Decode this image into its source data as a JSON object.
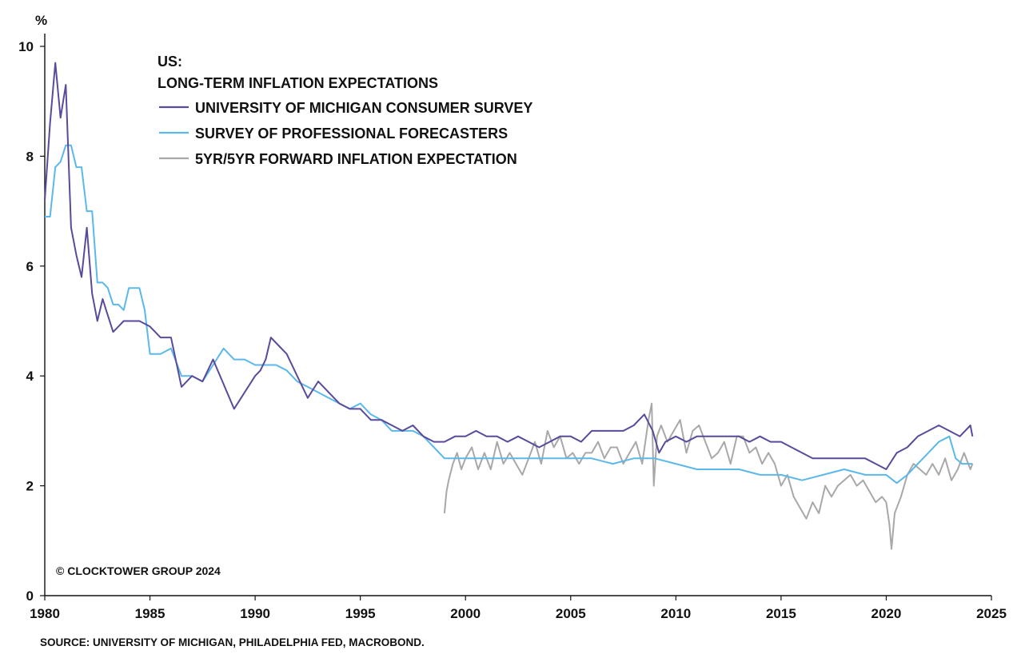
{
  "chart_data": {
    "type": "line",
    "title_line1": "US:",
    "title_line2": "LONG-TERM INFLATION EXPECTATIONS",
    "ylabel": "%",
    "xlim": [
      1980,
      2025
    ],
    "ylim": [
      0,
      10
    ],
    "x_ticks": [
      "1980",
      "1985",
      "1990",
      "1995",
      "2000",
      "2005",
      "2010",
      "2015",
      "2020",
      "2025"
    ],
    "y_ticks": [
      "0",
      "2",
      "4",
      "6",
      "8",
      "10"
    ],
    "grid": false,
    "legend_position": "top-left",
    "copyright": "© CLOCKTOWER GROUP 2024",
    "source": "SOURCE: UNIVERSITY OF MICHIGAN, PHILADELPHIA FED, MACROBOND.",
    "series": [
      {
        "name": "UNIVERSITY OF MICHIGAN CONSUMER SURVEY",
        "color": "#5b4a9c",
        "x": [
          1980.0,
          1980.25,
          1980.5,
          1980.75,
          1981.0,
          1981.25,
          1981.5,
          1981.75,
          1982.0,
          1982.25,
          1982.5,
          1982.75,
          1983.0,
          1983.25,
          1983.5,
          1983.75,
          1984.0,
          1984.5,
          1985.0,
          1985.5,
          1986.0,
          1986.5,
          1987.0,
          1987.5,
          1988.0,
          1989.0,
          1990.0,
          1990.25,
          1990.5,
          1990.75,
          1991.0,
          1991.5,
          1992.0,
          1992.5,
          1993.0,
          1993.5,
          1994.0,
          1994.5,
          1995.0,
          1995.5,
          1996.0,
          1996.5,
          1997.0,
          1997.5,
          1998.0,
          1998.5,
          1999.0,
          1999.5,
          2000.0,
          2000.5,
          2001.0,
          2001.5,
          2002.0,
          2002.5,
          2003.0,
          2003.5,
          2004.0,
          2004.5,
          2005.0,
          2005.5,
          2006.0,
          2006.5,
          2007.0,
          2007.5,
          2008.0,
          2008.5,
          2008.9,
          2009.2,
          2009.5,
          2010.0,
          2010.5,
          2011.0,
          2011.5,
          2012.0,
          2012.5,
          2013.0,
          2013.5,
          2014.0,
          2014.5,
          2015.0,
          2015.5,
          2016.0,
          2016.5,
          2017.0,
          2017.5,
          2018.0,
          2018.5,
          2019.0,
          2019.5,
          2020.0,
          2020.5,
          2021.0,
          2021.5,
          2022.0,
          2022.5,
          2023.0,
          2023.5,
          2024.0,
          2024.1
        ],
        "values": [
          7.2,
          8.6,
          9.7,
          8.7,
          9.3,
          6.7,
          6.2,
          5.8,
          6.7,
          5.5,
          5.0,
          5.4,
          5.1,
          4.8,
          4.9,
          5.0,
          5.0,
          5.0,
          4.9,
          4.7,
          4.7,
          3.8,
          4.0,
          3.9,
          4.3,
          3.4,
          4.0,
          4.1,
          4.3,
          4.7,
          4.6,
          4.4,
          4.0,
          3.6,
          3.9,
          3.7,
          3.5,
          3.4,
          3.4,
          3.2,
          3.2,
          3.1,
          3.0,
          3.1,
          2.9,
          2.8,
          2.8,
          2.9,
          2.9,
          3.0,
          2.9,
          2.9,
          2.8,
          2.9,
          2.8,
          2.7,
          2.8,
          2.9,
          2.9,
          2.8,
          3.0,
          3.0,
          3.0,
          3.0,
          3.1,
          3.3,
          3.0,
          2.6,
          2.8,
          2.9,
          2.8,
          2.9,
          2.9,
          2.9,
          2.9,
          2.9,
          2.8,
          2.9,
          2.8,
          2.8,
          2.7,
          2.6,
          2.5,
          2.5,
          2.5,
          2.5,
          2.5,
          2.5,
          2.4,
          2.3,
          2.6,
          2.7,
          2.9,
          3.0,
          3.1,
          3.0,
          2.9,
          3.1,
          2.9
        ]
      },
      {
        "name": "SURVEY OF PROFESSIONAL FORECASTERS",
        "color": "#5bb8ea",
        "x": [
          1980.0,
          1980.25,
          1980.5,
          1980.75,
          1981.0,
          1981.25,
          1981.5,
          1981.75,
          1982.0,
          1982.25,
          1982.5,
          1982.75,
          1983.0,
          1983.25,
          1983.5,
          1983.75,
          1984.0,
          1984.5,
          1984.75,
          1985.0,
          1985.5,
          1986.0,
          1986.5,
          1987.0,
          1987.5,
          1988.0,
          1988.5,
          1989.0,
          1989.5,
          1990.0,
          1990.5,
          1991.0,
          1991.5,
          1992.0,
          1992.5,
          1993.0,
          1993.5,
          1994.0,
          1994.5,
          1995.0,
          1995.5,
          1996.0,
          1996.5,
          1997.0,
          1997.5,
          1998.0,
          1998.5,
          1999.0,
          2000.0,
          2001.0,
          2002.0,
          2003.0,
          2004.0,
          2005.0,
          2006.0,
          2007.0,
          2008.0,
          2009.0,
          2010.0,
          2011.0,
          2012.0,
          2013.0,
          2014.0,
          2015.0,
          2016.0,
          2017.0,
          2018.0,
          2019.0,
          2020.0,
          2020.5,
          2021.0,
          2021.5,
          2022.0,
          2022.5,
          2023.0,
          2023.3,
          2023.6,
          2024.0,
          2024.1
        ],
        "values": [
          6.9,
          6.9,
          7.8,
          7.9,
          8.2,
          8.2,
          7.8,
          7.8,
          7.0,
          7.0,
          5.7,
          5.7,
          5.6,
          5.3,
          5.3,
          5.2,
          5.6,
          5.6,
          5.2,
          4.4,
          4.4,
          4.5,
          4.0,
          4.0,
          3.9,
          4.2,
          4.5,
          4.3,
          4.3,
          4.2,
          4.2,
          4.2,
          4.1,
          3.9,
          3.8,
          3.7,
          3.6,
          3.5,
          3.4,
          3.5,
          3.3,
          3.2,
          3.0,
          3.0,
          3.0,
          2.9,
          2.7,
          2.5,
          2.5,
          2.5,
          2.5,
          2.5,
          2.5,
          2.5,
          2.5,
          2.4,
          2.5,
          2.5,
          2.4,
          2.3,
          2.3,
          2.3,
          2.2,
          2.2,
          2.1,
          2.2,
          2.3,
          2.2,
          2.2,
          2.05,
          2.2,
          2.4,
          2.6,
          2.8,
          2.9,
          2.5,
          2.4,
          2.4,
          2.4
        ]
      },
      {
        "name": "5YR/5YR FORWARD INFLATION EXPECTATION",
        "color": "#a8a8a8",
        "x": [
          1999.0,
          1999.1,
          1999.2,
          1999.4,
          1999.6,
          1999.8,
          2000.0,
          2000.3,
          2000.6,
          2000.9,
          2001.2,
          2001.5,
          2001.8,
          2002.1,
          2002.4,
          2002.7,
          2003.0,
          2003.3,
          2003.6,
          2003.9,
          2004.2,
          2004.5,
          2004.8,
          2005.1,
          2005.4,
          2005.7,
          2006.0,
          2006.3,
          2006.6,
          2006.9,
          2007.2,
          2007.5,
          2007.8,
          2008.1,
          2008.4,
          2008.7,
          2008.85,
          2008.95,
          2009.1,
          2009.3,
          2009.6,
          2009.9,
          2010.2,
          2010.5,
          2010.8,
          2011.1,
          2011.4,
          2011.7,
          2012.0,
          2012.3,
          2012.6,
          2012.9,
          2013.2,
          2013.5,
          2013.8,
          2014.1,
          2014.4,
          2014.7,
          2015.0,
          2015.3,
          2015.6,
          2015.9,
          2016.2,
          2016.5,
          2016.8,
          2017.1,
          2017.4,
          2017.7,
          2018.0,
          2018.3,
          2018.6,
          2018.9,
          2019.2,
          2019.5,
          2019.8,
          2020.0,
          2020.15,
          2020.25,
          2020.4,
          2020.7,
          2021.0,
          2021.3,
          2021.6,
          2021.9,
          2022.2,
          2022.5,
          2022.8,
          2023.1,
          2023.4,
          2023.7,
          2024.0,
          2024.1
        ],
        "values": [
          1.5,
          1.9,
          2.1,
          2.4,
          2.6,
          2.3,
          2.5,
          2.7,
          2.3,
          2.6,
          2.3,
          2.8,
          2.4,
          2.6,
          2.4,
          2.2,
          2.5,
          2.8,
          2.4,
          3.0,
          2.7,
          2.9,
          2.5,
          2.6,
          2.4,
          2.6,
          2.6,
          2.8,
          2.5,
          2.7,
          2.7,
          2.4,
          2.6,
          2.8,
          2.4,
          3.2,
          3.5,
          2.0,
          2.9,
          3.1,
          2.8,
          3.0,
          3.2,
          2.6,
          3.0,
          3.1,
          2.8,
          2.5,
          2.6,
          2.8,
          2.4,
          2.9,
          2.9,
          2.6,
          2.7,
          2.4,
          2.6,
          2.4,
          2.0,
          2.2,
          1.8,
          1.6,
          1.4,
          1.7,
          1.5,
          2.0,
          1.8,
          2.0,
          2.1,
          2.2,
          2.0,
          2.1,
          1.9,
          1.7,
          1.8,
          1.7,
          1.3,
          0.85,
          1.5,
          1.8,
          2.2,
          2.4,
          2.3,
          2.2,
          2.4,
          2.2,
          2.5,
          2.1,
          2.3,
          2.6,
          2.3,
          2.4
        ]
      }
    ]
  }
}
